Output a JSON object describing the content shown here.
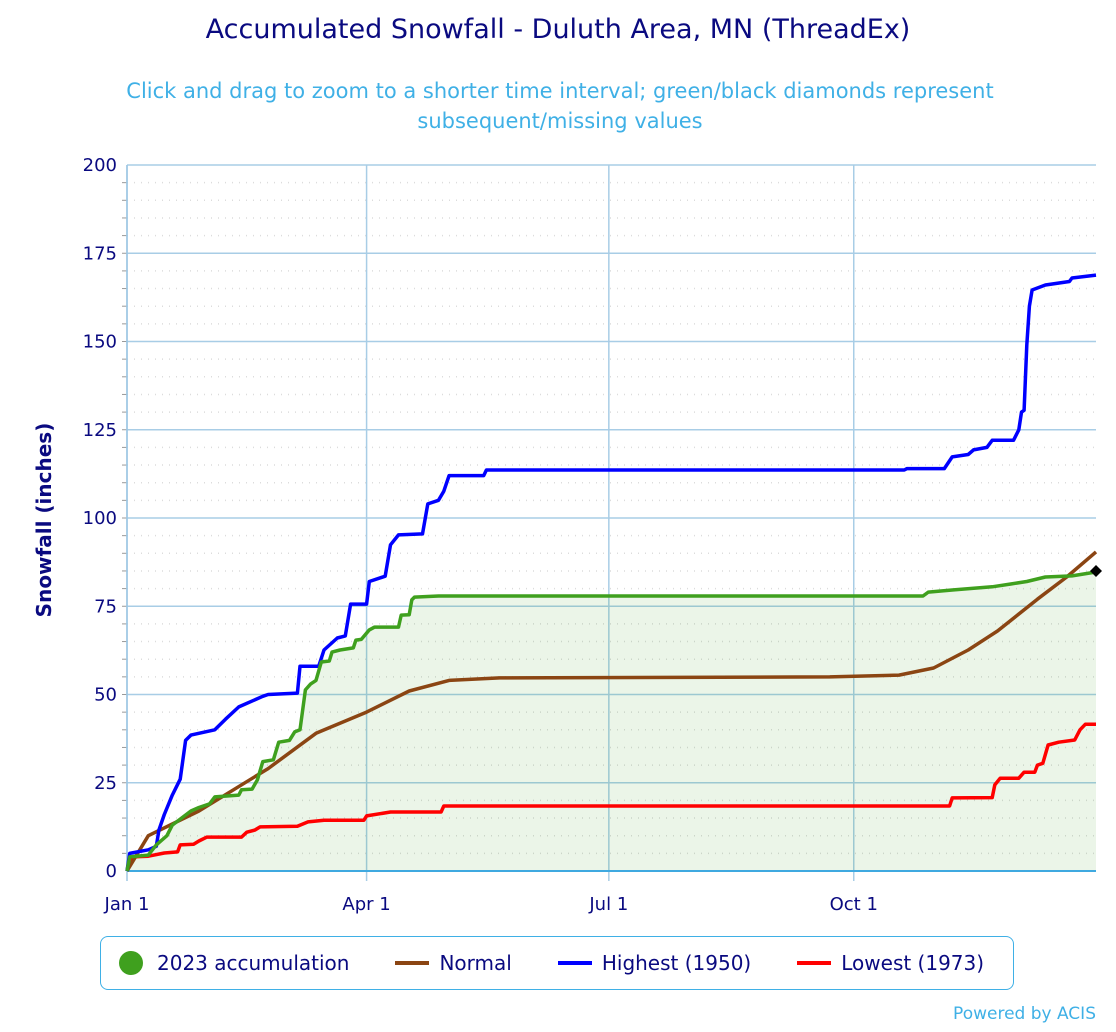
{
  "chart_data": {
    "type": "line",
    "title": "Accumulated Snowfall - Duluth Area, MN (ThreadEx)",
    "subtitle": "Click and drag to zoom to a shorter time interval; green/black diamonds represent subsequent/missing values",
    "xlabel": "",
    "ylabel": "Snowfall (inches)",
    "ylim": [
      0,
      200
    ],
    "yticks": [
      "0",
      "25",
      "50",
      "75",
      "100",
      "125",
      "150",
      "175",
      "200"
    ],
    "xlim": [
      "01-01",
      "12-31"
    ],
    "xticks": [
      {
        "date": "01-01",
        "label": "Jan 1"
      },
      {
        "date": "04-01",
        "label": "Apr 1"
      },
      {
        "date": "07-01",
        "label": "Jul 1"
      },
      {
        "date": "10-01",
        "label": "Oct 1"
      }
    ],
    "grid": true,
    "legend_position": "bottom",
    "series": [
      {
        "name": "2023 accumulation",
        "color": "#3fa01e",
        "filled": true,
        "legend_symbol": "circle",
        "points": [
          [
            "01-01",
            0
          ],
          [
            "01-02",
            4
          ],
          [
            "01-09",
            4.5
          ],
          [
            "01-12",
            7.4
          ],
          [
            "01-16",
            10
          ],
          [
            "01-18",
            13
          ],
          [
            "01-25",
            17
          ],
          [
            "01-28",
            18
          ],
          [
            "02-01",
            19
          ],
          [
            "02-03",
            21
          ],
          [
            "02-12",
            21.5
          ],
          [
            "02-13",
            23
          ],
          [
            "02-17",
            23.2
          ],
          [
            "02-19",
            25.8
          ],
          [
            "02-21",
            31
          ],
          [
            "02-25",
            31.5
          ],
          [
            "02-27",
            36.5
          ],
          [
            "03-03",
            37
          ],
          [
            "03-05",
            39.4
          ],
          [
            "03-07",
            40
          ],
          [
            "03-09",
            51.3
          ],
          [
            "03-11",
            53
          ],
          [
            "03-13",
            54
          ],
          [
            "03-15",
            59.2
          ],
          [
            "03-18",
            59.5
          ],
          [
            "03-19",
            62
          ],
          [
            "03-22",
            62.6
          ],
          [
            "03-27",
            63.2
          ],
          [
            "03-28",
            65.4
          ],
          [
            "03-30",
            65.6
          ],
          [
            "04-02",
            68.3
          ],
          [
            "04-04",
            69.1
          ],
          [
            "04-13",
            69.1
          ],
          [
            "04-14",
            72.5
          ],
          [
            "04-17",
            72.6
          ],
          [
            "04-18",
            76.8
          ],
          [
            "04-19",
            77.6
          ],
          [
            "04-28",
            77.9
          ],
          [
            "10-27",
            77.9
          ],
          [
            "10-29",
            79
          ],
          [
            "11-07",
            79.6
          ],
          [
            "11-22",
            80.5
          ],
          [
            "11-29",
            81.3
          ],
          [
            "12-05",
            82
          ],
          [
            "12-12",
            83.3
          ],
          [
            "12-22",
            83.6
          ],
          [
            "12-31",
            84.7
          ]
        ]
      },
      {
        "name": "Normal",
        "color": "#8b4513",
        "legend_symbol": "line",
        "points": [
          [
            "01-01",
            0
          ],
          [
            "01-09",
            10
          ],
          [
            "01-28",
            17
          ],
          [
            "02-23",
            29
          ],
          [
            "03-13",
            39
          ],
          [
            "04-01",
            45
          ],
          [
            "04-17",
            51
          ],
          [
            "05-02",
            54
          ],
          [
            "05-21",
            54.7
          ],
          [
            "09-22",
            55
          ],
          [
            "10-18",
            55.5
          ],
          [
            "10-31",
            57.5
          ],
          [
            "11-13",
            62.6
          ],
          [
            "11-24",
            68
          ],
          [
            "12-09",
            77
          ],
          [
            "12-20",
            83.3
          ],
          [
            "12-31",
            90.4
          ]
        ]
      },
      {
        "name": "Highest (1950)",
        "color": "#0000ff",
        "legend_symbol": "line",
        "points": [
          [
            "01-01",
            0
          ],
          [
            "01-02",
            5
          ],
          [
            "01-09",
            6
          ],
          [
            "01-12",
            7
          ],
          [
            "01-13",
            11.6
          ],
          [
            "01-15",
            16
          ],
          [
            "01-18",
            21.5
          ],
          [
            "01-21",
            26
          ],
          [
            "01-23",
            37
          ],
          [
            "01-25",
            38.5
          ],
          [
            "02-03",
            40
          ],
          [
            "02-07",
            43
          ],
          [
            "02-12",
            46.5
          ],
          [
            "02-21",
            49.5
          ],
          [
            "02-23",
            50
          ],
          [
            "03-06",
            50.4
          ],
          [
            "03-07",
            58
          ],
          [
            "03-14",
            58
          ],
          [
            "03-16",
            62.6
          ],
          [
            "03-21",
            66
          ],
          [
            "03-24",
            66.6
          ],
          [
            "03-26",
            75.6
          ],
          [
            "04-01",
            75.6
          ],
          [
            "04-02",
            82
          ],
          [
            "04-08",
            83.5
          ],
          [
            "04-10",
            92.4
          ],
          [
            "04-13",
            95.2
          ],
          [
            "04-22",
            95.5
          ],
          [
            "04-24",
            104
          ],
          [
            "04-28",
            105
          ],
          [
            "04-30",
            107.6
          ],
          [
            "05-02",
            112
          ],
          [
            "05-15",
            112
          ],
          [
            "05-16",
            113.6
          ],
          [
            "10-20",
            113.6
          ],
          [
            "10-21",
            114
          ],
          [
            "11-04",
            114
          ],
          [
            "11-07",
            117.3
          ],
          [
            "11-13",
            118
          ],
          [
            "11-15",
            119.3
          ],
          [
            "11-20",
            120
          ],
          [
            "11-22",
            122
          ],
          [
            "11-30",
            122
          ],
          [
            "12-02",
            125
          ],
          [
            "12-03",
            130
          ],
          [
            "12-04",
            130.5
          ],
          [
            "12-05",
            149
          ],
          [
            "12-06",
            160
          ],
          [
            "12-07",
            164.6
          ],
          [
            "12-12",
            166
          ],
          [
            "12-21",
            167
          ],
          [
            "12-22",
            168
          ],
          [
            "12-31",
            168.8
          ]
        ]
      },
      {
        "name": "Lowest (1973)",
        "color": "#ff0000",
        "legend_symbol": "line",
        "points": [
          [
            "01-01",
            0
          ],
          [
            "01-03",
            4
          ],
          [
            "01-09",
            4.2
          ],
          [
            "01-15",
            5.1
          ],
          [
            "01-20",
            5.4
          ],
          [
            "01-21",
            7.4
          ],
          [
            "01-26",
            7.6
          ],
          [
            "01-28",
            8.5
          ],
          [
            "01-31",
            9.6
          ],
          [
            "02-13",
            9.6
          ],
          [
            "02-15",
            11
          ],
          [
            "02-18",
            11.6
          ],
          [
            "02-20",
            12.5
          ],
          [
            "03-06",
            12.7
          ],
          [
            "03-10",
            13.9
          ],
          [
            "03-16",
            14.4
          ],
          [
            "03-31",
            14.4
          ],
          [
            "04-01",
            15.6
          ],
          [
            "04-10",
            16.7
          ],
          [
            "04-29",
            16.7
          ],
          [
            "04-30",
            18.4
          ],
          [
            "11-06",
            18.4
          ],
          [
            "11-07",
            20.7
          ],
          [
            "11-22",
            20.8
          ],
          [
            "11-23",
            24.4
          ],
          [
            "11-25",
            26.3
          ],
          [
            "12-02",
            26.3
          ],
          [
            "12-04",
            28
          ],
          [
            "12-08",
            28
          ],
          [
            "12-09",
            30
          ],
          [
            "12-11",
            30.5
          ],
          [
            "12-13",
            35.7
          ],
          [
            "12-17",
            36.5
          ],
          [
            "12-23",
            37.1
          ],
          [
            "12-25",
            40
          ],
          [
            "12-27",
            41.6
          ],
          [
            "12-31",
            41.6
          ]
        ]
      }
    ],
    "markers": [
      {
        "type": "diamond",
        "color": "#000000",
        "date": "12-31",
        "value": 85
      }
    ]
  },
  "credit": "Powered by ACIS"
}
